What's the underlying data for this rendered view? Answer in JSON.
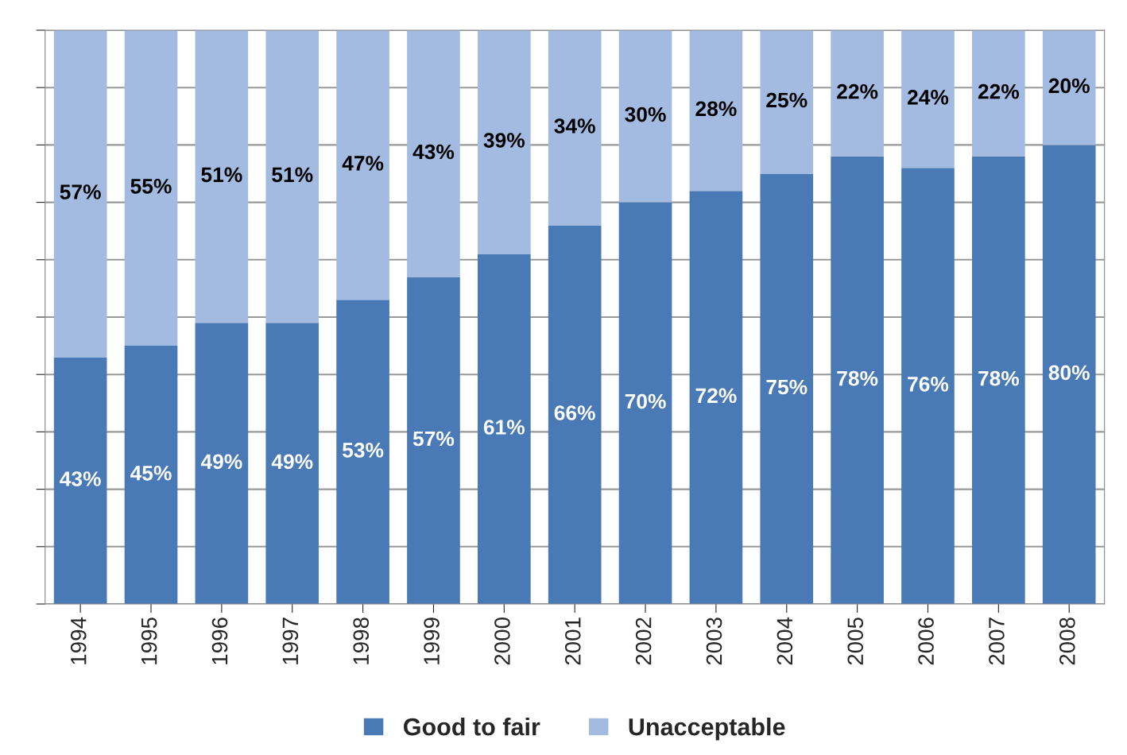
{
  "chart_data": {
    "type": "bar",
    "stacked": true,
    "categories": [
      "1994",
      "1995",
      "1996",
      "1997",
      "1998",
      "1999",
      "2000",
      "2001",
      "2002",
      "2003",
      "2004",
      "2005",
      "2006",
      "2007",
      "2008"
    ],
    "series": [
      {
        "name": "Good to fair",
        "color": "#4a7ab5",
        "values": [
          43,
          45,
          49,
          49,
          53,
          57,
          61,
          66,
          70,
          72,
          75,
          78,
          76,
          78,
          80
        ],
        "value_labels": [
          "43%",
          "45%",
          "49%",
          "49%",
          "53%",
          "57%",
          "61%",
          "66%",
          "70%",
          "72%",
          "75%",
          "78%",
          "76%",
          "78%",
          "80%"
        ]
      },
      {
        "name": "Unacceptable",
        "color": "#a3bbe0",
        "values": [
          57,
          55,
          51,
          51,
          47,
          43,
          39,
          34,
          30,
          28,
          25,
          22,
          24,
          22,
          20
        ],
        "value_labels": [
          "57%",
          "55%",
          "51%",
          "51%",
          "47%",
          "43%",
          "39%",
          "34%",
          "30%",
          "28%",
          "25%",
          "22%",
          "24%",
          "22%",
          "20%"
        ]
      }
    ],
    "tick_labels": "x",
    "grid": "y",
    "legend": "bottom"
  }
}
